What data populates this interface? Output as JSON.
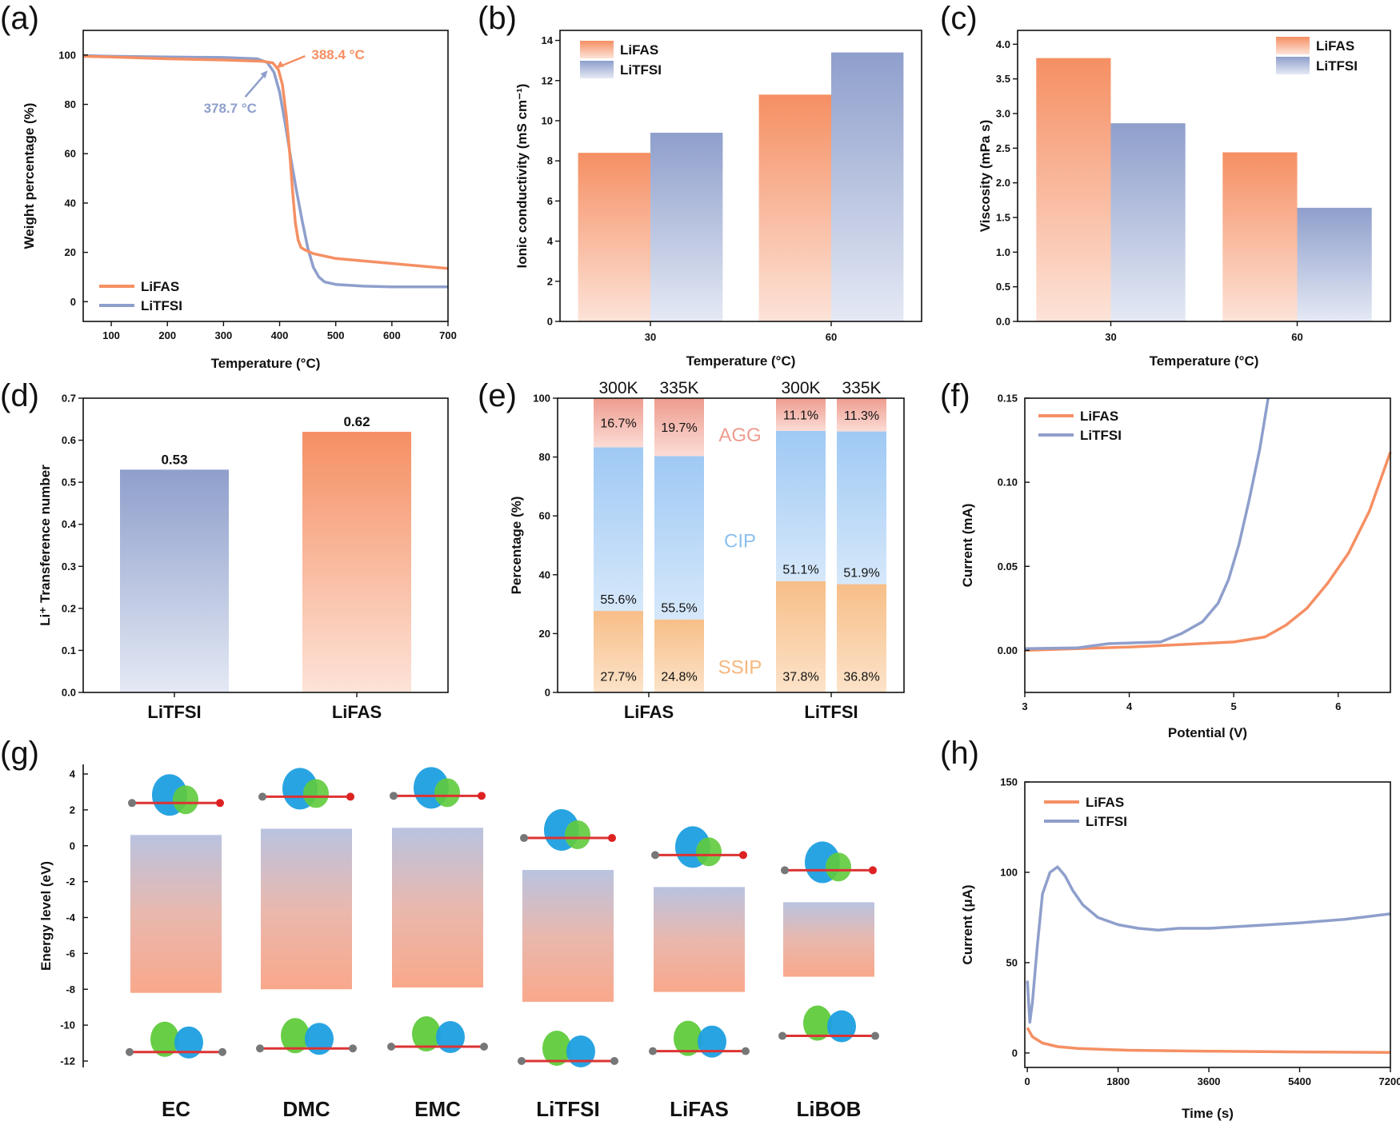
{
  "colors": {
    "lifas": "#F58F63",
    "litfsi": "#8F9FCC",
    "lifas_light": "#FDE3D8",
    "litfsi_light": "#E4E9F4",
    "ssip": "#F9C48E",
    "cip": "#A6CDF5",
    "agg": "#F0A499",
    "ssip_text": "#F6B77E",
    "cip_text": "#8DC0EE",
    "agg_text": "#EE9C8F",
    "iso_blue": "#1E9FE0",
    "iso_green": "#5FCB3C"
  },
  "panels": {
    "a": "(a)",
    "b": "(b)",
    "c": "(c)",
    "d": "(d)",
    "e": "(e)",
    "f": "(f)",
    "g": "(g)",
    "h": "(h)"
  },
  "chart_data": [
    {
      "id": "a",
      "type": "line",
      "xlabel": "Temperature (°C)",
      "ylabel": "Weight percentage (%)",
      "xlim": [
        50,
        700
      ],
      "ylim": [
        -8,
        110
      ],
      "xticks": [
        100,
        200,
        300,
        400,
        500,
        600,
        700
      ],
      "yticks": [
        0,
        20,
        40,
        60,
        80,
        100
      ],
      "series": [
        {
          "name": "LiFAS",
          "x": [
            50,
            100,
            200,
            300,
            370,
            388,
            398,
            405,
            412,
            418,
            423,
            428,
            433,
            438,
            445,
            460,
            500,
            600,
            700
          ],
          "y": [
            99.5,
            99.2,
            98.5,
            98.0,
            97.5,
            96.8,
            94,
            88,
            75,
            60,
            45,
            32,
            25,
            22,
            21,
            19.5,
            17.5,
            15.5,
            13.5
          ]
        },
        {
          "name": "LiTFSI",
          "x": [
            50,
            100,
            200,
            300,
            360,
            378,
            390,
            400,
            410,
            420,
            430,
            440,
            450,
            460,
            470,
            480,
            500,
            550,
            600,
            700
          ],
          "y": [
            99.8,
            99.5,
            99.2,
            99,
            98.5,
            97,
            93,
            85,
            72,
            58,
            45,
            33,
            22,
            14,
            10,
            8,
            7,
            6.3,
            6.0,
            6.0
          ]
        }
      ],
      "annotations": [
        {
          "label": "388.4 °C",
          "series": "LiFAS",
          "x": 388.4
        },
        {
          "label": "378.7 °C",
          "series": "LiTFSI",
          "x": 378.7
        }
      ]
    },
    {
      "id": "b",
      "type": "bar",
      "xlabel": "Temperature (°C)",
      "ylabel": "Ionic conductivity (mS cm⁻¹)",
      "categories": [
        "30",
        "60"
      ],
      "ylim": [
        0,
        14.5
      ],
      "yticks": [
        0,
        2,
        4,
        6,
        8,
        10,
        12,
        14
      ],
      "series": [
        {
          "name": "LiFAS",
          "values": [
            8.4,
            11.3
          ]
        },
        {
          "name": "LiTFSI",
          "values": [
            9.4,
            13.4
          ]
        }
      ]
    },
    {
      "id": "c",
      "type": "bar",
      "xlabel": "Temperature (°C)",
      "ylabel": "Viscosity (mPa s)",
      "categories": [
        "30",
        "60"
      ],
      "ylim": [
        0,
        4.2
      ],
      "yticks": [
        0.0,
        0.5,
        1.0,
        1.5,
        2.0,
        2.5,
        3.0,
        3.5,
        4.0
      ],
      "series": [
        {
          "name": "LiFAS",
          "values": [
            3.8,
            2.44
          ]
        },
        {
          "name": "LiTFSI",
          "values": [
            2.86,
            1.64
          ]
        }
      ]
    },
    {
      "id": "d",
      "type": "bar",
      "ylabel": "Li⁺ Transference number",
      "categories": [
        "LiTFSI",
        "LiFAS"
      ],
      "values": [
        0.53,
        0.62
      ],
      "labels": [
        "0.53",
        "0.62"
      ],
      "ylim": [
        0,
        0.7
      ],
      "yticks": [
        0.0,
        0.1,
        0.2,
        0.3,
        0.4,
        0.5,
        0.6,
        0.7
      ]
    },
    {
      "id": "e",
      "type": "bar",
      "stacked": true,
      "ylabel": "Percentage (%)",
      "groups": [
        "LiFAS",
        "LiTFSI"
      ],
      "bars": [
        "300K",
        "335K",
        "300K",
        "335K"
      ],
      "ylim": [
        0,
        100
      ],
      "yticks": [
        0,
        20,
        40,
        60,
        80,
        100
      ],
      "segments": [
        "SSIP",
        "CIP",
        "AGG"
      ],
      "values": [
        [
          27.7,
          55.6,
          16.7
        ],
        [
          24.8,
          55.5,
          19.7
        ],
        [
          37.8,
          51.1,
          11.1
        ],
        [
          36.8,
          51.9,
          11.3
        ]
      ],
      "labels": [
        [
          "27.7%",
          "55.6%",
          "16.7%"
        ],
        [
          "24.8%",
          "55.5%",
          "19.7%"
        ],
        [
          "37.8%",
          "51.1%",
          "11.1%"
        ],
        [
          "36.8%",
          "51.9%",
          "11.3%"
        ]
      ]
    },
    {
      "id": "f",
      "type": "line",
      "xlabel": "Potential (V)",
      "ylabel": "Current (mA)",
      "xlim": [
        3,
        6.5
      ],
      "ylim": [
        -0.025,
        0.15
      ],
      "xticks": [
        3,
        4,
        5,
        6
      ],
      "yticks": [
        0.0,
        0.05,
        0.1,
        0.15
      ],
      "ytick_labels": [
        "0.00",
        "0.05",
        "0.10",
        "0.15"
      ],
      "series": [
        {
          "name": "LiFAS",
          "x": [
            3,
            3.5,
            4.0,
            4.5,
            5.0,
            5.3,
            5.5,
            5.7,
            5.9,
            6.1,
            6.3,
            6.5
          ],
          "y": [
            0,
            0.001,
            0.002,
            0.0035,
            0.005,
            0.008,
            0.015,
            0.025,
            0.04,
            0.058,
            0.083,
            0.118
          ]
        },
        {
          "name": "LiTFSI",
          "x": [
            3,
            3.5,
            3.8,
            4.3,
            4.5,
            4.7,
            4.85,
            4.95,
            5.05,
            5.15,
            5.25,
            5.33
          ],
          "y": [
            0.001,
            0.0015,
            0.004,
            0.005,
            0.01,
            0.017,
            0.028,
            0.042,
            0.063,
            0.09,
            0.12,
            0.15
          ]
        }
      ]
    },
    {
      "id": "g",
      "type": "bar",
      "subtype": "range",
      "ylabel": "Energy level (eV)",
      "categories": [
        "EC",
        "DMC",
        "EMC",
        "LiTFSI",
        "LiFAS",
        "LiBOB"
      ],
      "ylim": [
        -12,
        4
      ],
      "yticks": [
        4,
        2,
        0,
        -2,
        -4,
        -6,
        -8,
        -10,
        -12
      ],
      "lumo": [
        0.6,
        0.95,
        1.0,
        -1.35,
        -2.3,
        -3.15
      ],
      "homo": [
        -8.2,
        -8.0,
        -7.9,
        -8.7,
        -8.15,
        -7.3
      ]
    },
    {
      "id": "h",
      "type": "line",
      "xlabel": "Time (s)",
      "ylabel": "Current (μA)",
      "xlim": [
        -50,
        7200
      ],
      "ylim": [
        -8,
        150
      ],
      "xticks": [
        0,
        1800,
        3600,
        5400,
        7200
      ],
      "yticks": [
        0,
        50,
        100,
        150
      ],
      "series": [
        {
          "name": "LiFAS",
          "x": [
            0,
            100,
            300,
            600,
            1000,
            2000,
            3600,
            5400,
            7200
          ],
          "y": [
            14,
            9,
            5.5,
            3.5,
            2.5,
            1.5,
            1.0,
            0.6,
            0.3
          ]
        },
        {
          "name": "LiTFSI",
          "x": [
            0,
            50,
            100,
            200,
            300,
            450,
            600,
            750,
            900,
            1100,
            1400,
            1800,
            2200,
            2600,
            3000,
            3600,
            4200,
            5400,
            6300,
            7200
          ],
          "y": [
            40,
            17,
            28,
            60,
            88,
            100,
            103,
            98,
            90,
            82,
            75,
            71,
            69,
            68,
            69,
            69,
            70,
            72,
            74,
            77
          ]
        }
      ]
    }
  ]
}
